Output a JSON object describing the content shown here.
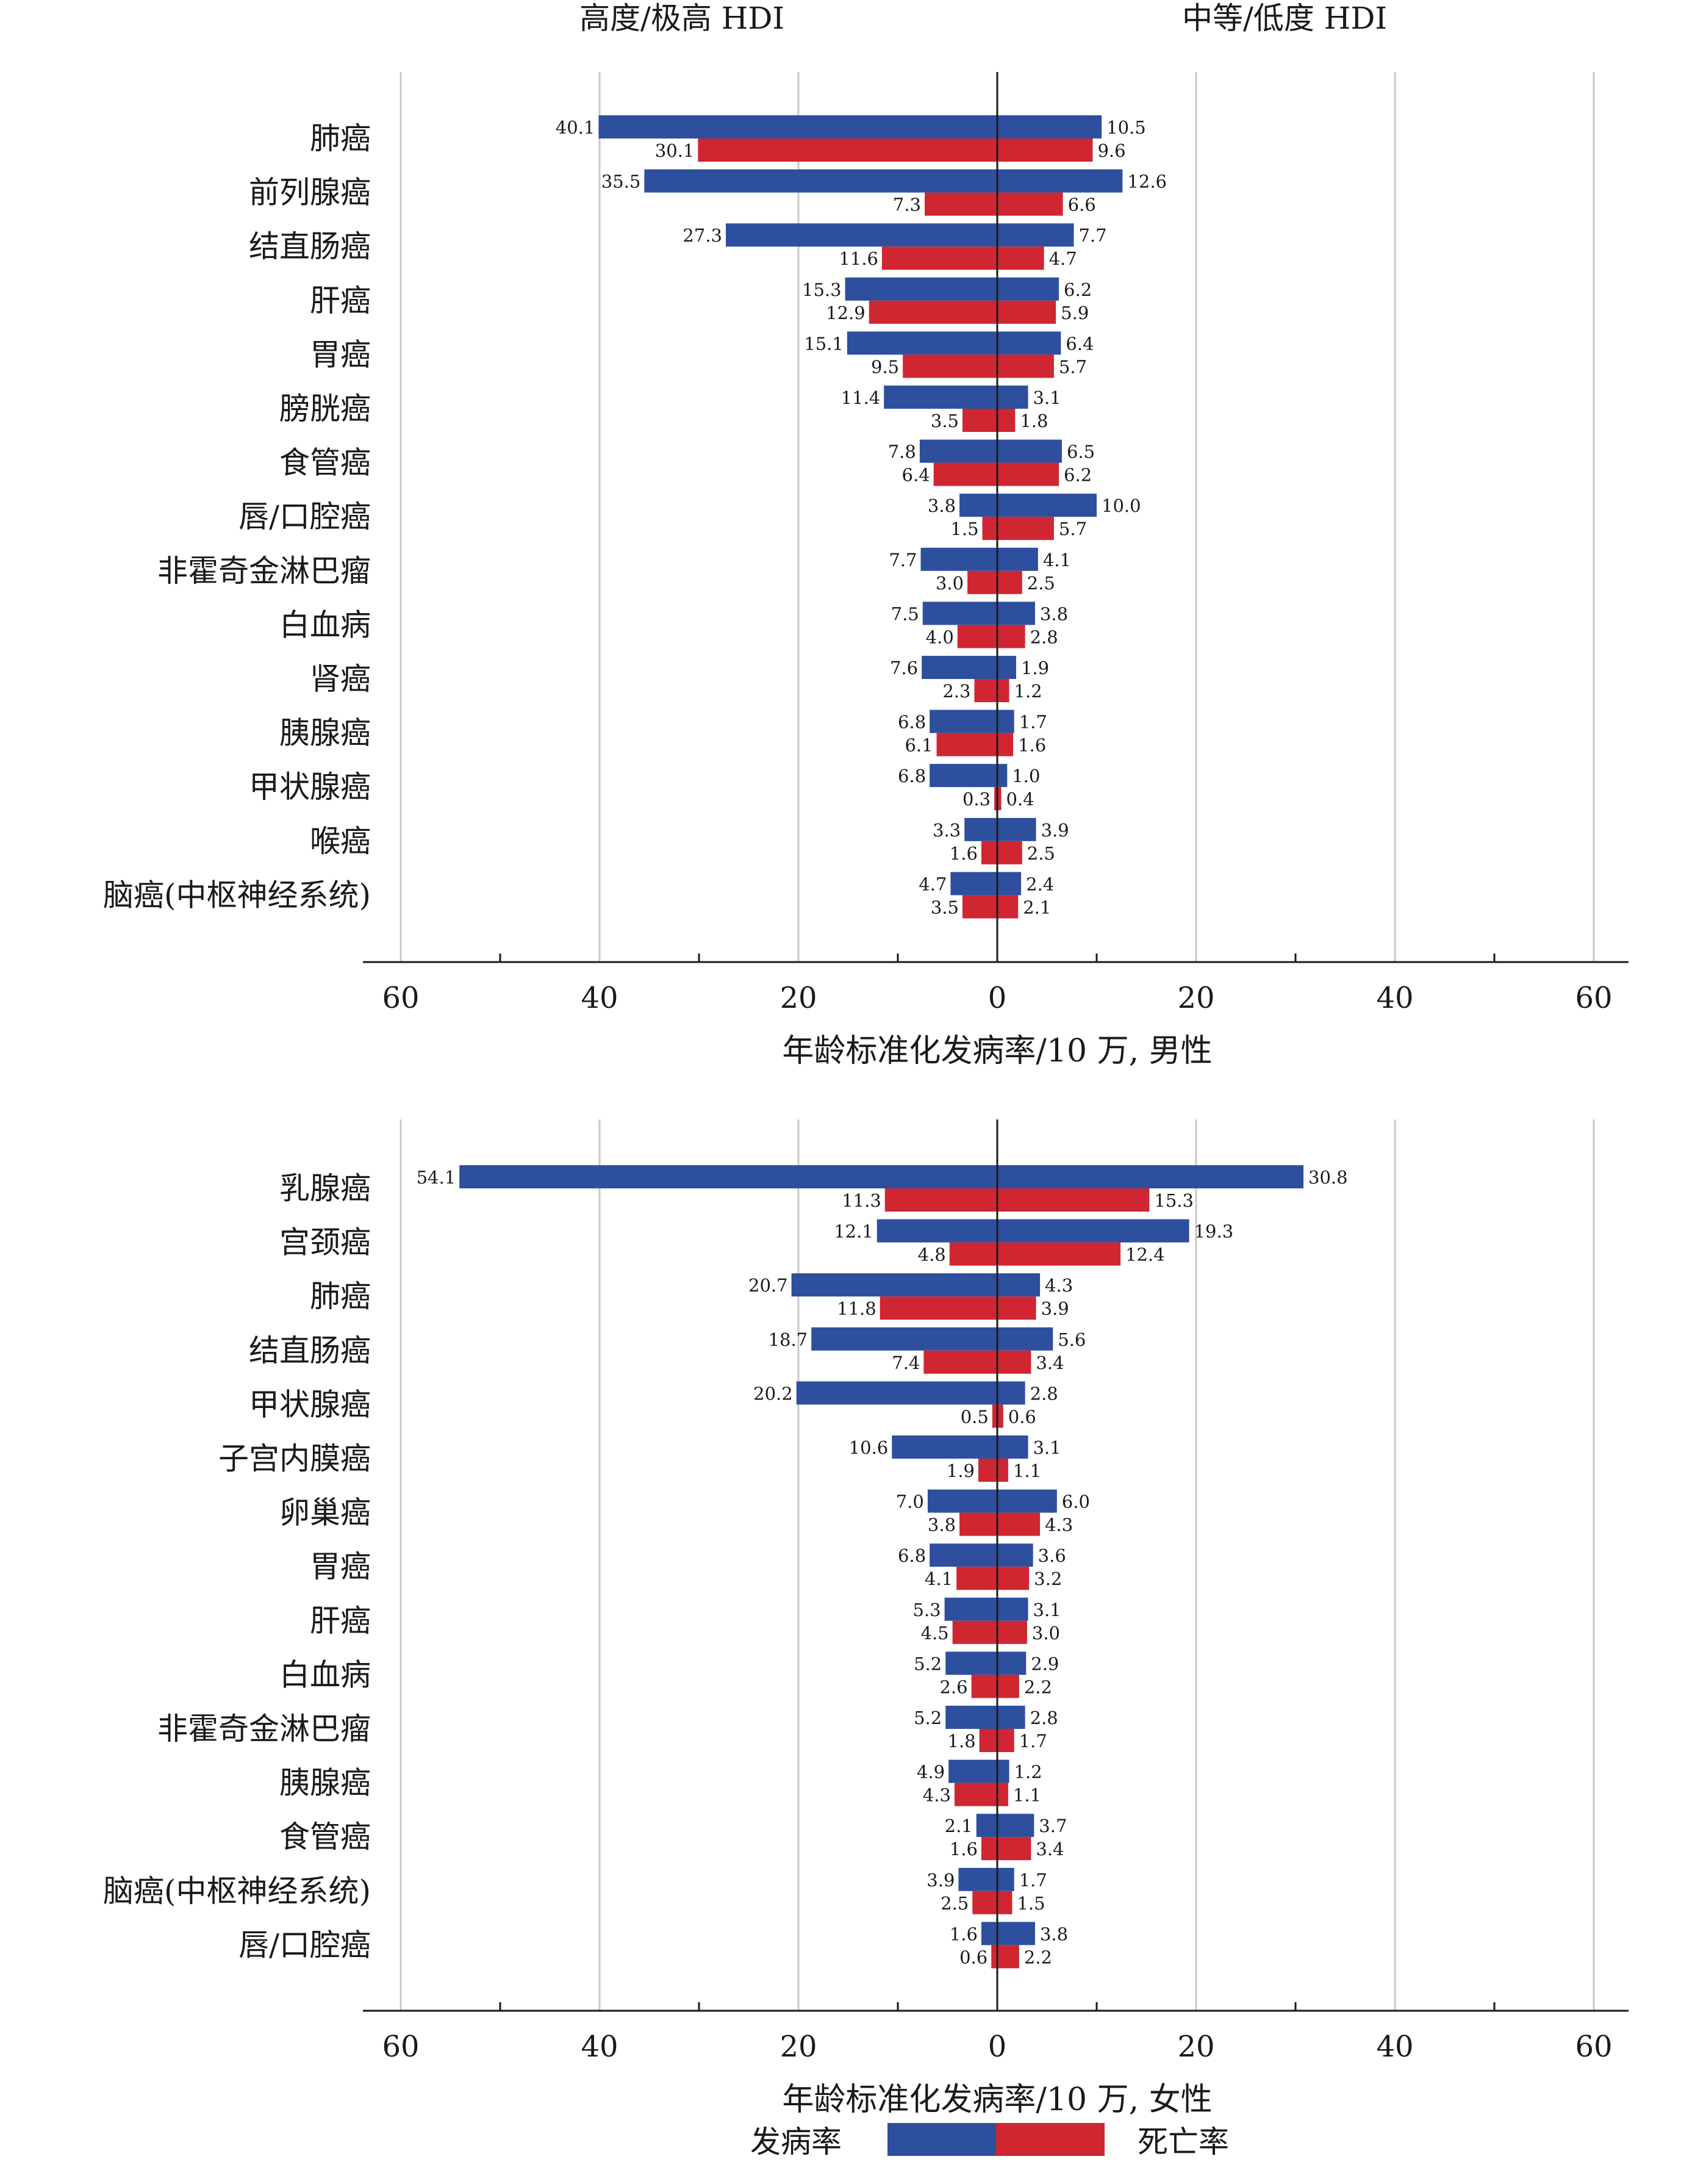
{
  "headers": {
    "left": "高度/极高 HDI",
    "right": "中等/低度 HDI"
  },
  "legend": {
    "incidence": "发病率",
    "mortality": "死亡率"
  },
  "colors": {
    "incidence": "#2e4f9e",
    "mortality": "#d02631",
    "grid": "#c8c8c8",
    "axis": "#1a1a1a"
  },
  "chart_data": [
    {
      "type": "bar",
      "orientation": "horizontal-butterfly",
      "xlabel": "年龄标准化发病率/10 万, 男性",
      "xlim": [
        -60,
        60
      ],
      "ticks": [
        60,
        40,
        20,
        0,
        20,
        40,
        60
      ],
      "grid": true,
      "categories": [
        "肺癌",
        "前列腺癌",
        "结直肠癌",
        "肝癌",
        "胃癌",
        "膀胱癌",
        "食管癌",
        "唇/口腔癌",
        "非霍奇金淋巴瘤",
        "白血病",
        "肾癌",
        "胰腺癌",
        "甲状腺癌",
        "喉癌",
        "脑癌(中枢神经系统)"
      ],
      "series": [
        {
          "name": "发病率",
          "group": "高度/极高 HDI",
          "values": [
            "40.1",
            "35.5",
            "27.3",
            "15.3",
            "15.1",
            "11.4",
            "7.8",
            "3.8",
            "7.7",
            "7.5",
            "7.6",
            "6.8",
            "6.8",
            "3.3",
            "4.7"
          ]
        },
        {
          "name": "死亡率",
          "group": "高度/极高 HDI",
          "values": [
            "30.1",
            "7.3",
            "11.6",
            "12.9",
            "9.5",
            "3.5",
            "6.4",
            "1.5",
            "3.0",
            "4.0",
            "2.3",
            "6.1",
            "0.3",
            "1.6",
            "3.5"
          ]
        },
        {
          "name": "发病率",
          "group": "中等/低度 HDI",
          "values": [
            "10.5",
            "12.6",
            "7.7",
            "6.2",
            "6.4",
            "3.1",
            "6.5",
            "10.0",
            "4.1",
            "3.8",
            "1.9",
            "1.7",
            "1.0",
            "3.9",
            "2.4"
          ]
        },
        {
          "name": "死亡率",
          "group": "中等/低度 HDI",
          "values": [
            "9.6",
            "6.6",
            "4.7",
            "5.9",
            "5.7",
            "1.8",
            "6.2",
            "5.7",
            "2.5",
            "2.8",
            "1.2",
            "1.6",
            "0.4",
            "2.5",
            "2.1"
          ]
        }
      ]
    },
    {
      "type": "bar",
      "orientation": "horizontal-butterfly",
      "xlabel": "年龄标准化发病率/10 万, 女性",
      "xlim": [
        -60,
        60
      ],
      "ticks": [
        60,
        40,
        20,
        0,
        20,
        40,
        60
      ],
      "grid": true,
      "categories": [
        "乳腺癌",
        "宫颈癌",
        "肺癌",
        "结直肠癌",
        "甲状腺癌",
        "子宫内膜癌",
        "卵巢癌",
        "胃癌",
        "肝癌",
        "白血病",
        "非霍奇金淋巴瘤",
        "胰腺癌",
        "食管癌",
        "脑癌(中枢神经系统)",
        "唇/口腔癌"
      ],
      "series": [
        {
          "name": "发病率",
          "group": "高度/极高 HDI",
          "values": [
            "54.1",
            "12.1",
            "20.7",
            "18.7",
            "20.2",
            "10.6",
            "7.0",
            "6.8",
            "5.3",
            "5.2",
            "5.2",
            "4.9",
            "2.1",
            "3.9",
            "1.6"
          ]
        },
        {
          "name": "死亡率",
          "group": "高度/极高 HDI",
          "values": [
            "11.3",
            "4.8",
            "11.8",
            "7.4",
            "0.5",
            "1.9",
            "3.8",
            "4.1",
            "4.5",
            "2.6",
            "1.8",
            "4.3",
            "1.6",
            "2.5",
            "0.6"
          ]
        },
        {
          "name": "发病率",
          "group": "中等/低度 HDI",
          "values": [
            "30.8",
            "19.3",
            "4.3",
            "5.6",
            "2.8",
            "3.1",
            "6.0",
            "3.6",
            "3.1",
            "2.9",
            "2.8",
            "1.2",
            "3.7",
            "1.7",
            "3.8"
          ]
        },
        {
          "name": "死亡率",
          "group": "中等/低度 HDI",
          "values": [
            "15.3",
            "12.4",
            "3.9",
            "3.4",
            "0.6",
            "1.1",
            "4.3",
            "3.2",
            "3.0",
            "2.2",
            "1.7",
            "1.1",
            "3.4",
            "1.5",
            "2.2"
          ]
        }
      ]
    }
  ]
}
